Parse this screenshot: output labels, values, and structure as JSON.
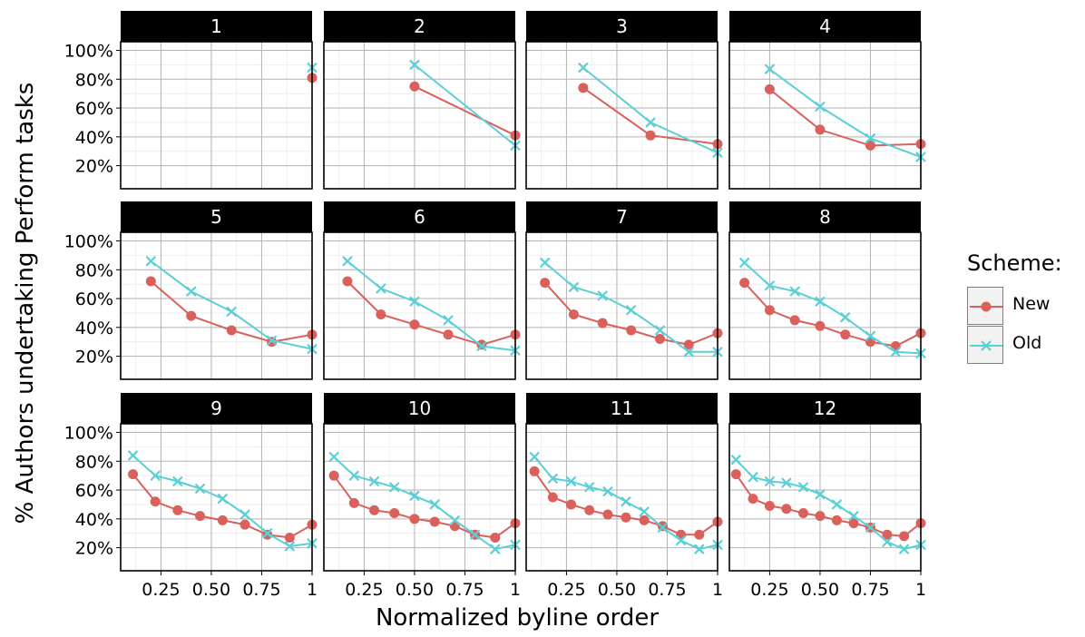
{
  "colors": {
    "new": "#d9605b",
    "old": "#5bcfd6",
    "strip": "#000000",
    "strip_text": "#ffffff"
  },
  "chart_data": {
    "type": "line",
    "xlabel": "Normalized byline order",
    "ylabel": "% Authors undertaking Perform tasks",
    "xlim": [
      0.05,
      1.0
    ],
    "ylim": [
      0.04,
      1.06
    ],
    "xticks": [
      0.25,
      0.5,
      0.75,
      1
    ],
    "xtick_labels": [
      "0.25",
      "0.50",
      "0.75",
      "1"
    ],
    "yticks": [
      0.2,
      0.4,
      0.6,
      0.8,
      1.0
    ],
    "ytick_labels": [
      "20%",
      "40%",
      "60%",
      "80%",
      "100%"
    ],
    "grid": true,
    "legend": {
      "title": "Scheme:",
      "placement": "right",
      "entries": [
        "New",
        "Old"
      ]
    },
    "facets": [
      {
        "label": "1",
        "series": [
          {
            "name": "New",
            "x": [
              1
            ],
            "y": [
              0.81
            ]
          },
          {
            "name": "Old",
            "x": [
              1
            ],
            "y": [
              0.88
            ]
          }
        ]
      },
      {
        "label": "2",
        "series": [
          {
            "name": "New",
            "x": [
              0.5,
              1
            ],
            "y": [
              0.75,
              0.41
            ]
          },
          {
            "name": "Old",
            "x": [
              0.5,
              1
            ],
            "y": [
              0.9,
              0.34
            ]
          }
        ]
      },
      {
        "label": "3",
        "series": [
          {
            "name": "New",
            "x": [
              0.333,
              0.667,
              1
            ],
            "y": [
              0.74,
              0.41,
              0.35
            ]
          },
          {
            "name": "Old",
            "x": [
              0.333,
              0.667,
              1
            ],
            "y": [
              0.88,
              0.5,
              0.29
            ]
          }
        ]
      },
      {
        "label": "4",
        "series": [
          {
            "name": "New",
            "x": [
              0.25,
              0.5,
              0.75,
              1
            ],
            "y": [
              0.73,
              0.45,
              0.34,
              0.35
            ]
          },
          {
            "name": "Old",
            "x": [
              0.25,
              0.5,
              0.75,
              1
            ],
            "y": [
              0.87,
              0.61,
              0.39,
              0.26
            ]
          }
        ]
      },
      {
        "label": "5",
        "series": [
          {
            "name": "New",
            "x": [
              0.2,
              0.4,
              0.6,
              0.8,
              1
            ],
            "y": [
              0.72,
              0.48,
              0.38,
              0.3,
              0.35
            ]
          },
          {
            "name": "Old",
            "x": [
              0.2,
              0.4,
              0.6,
              0.8,
              1
            ],
            "y": [
              0.86,
              0.65,
              0.51,
              0.31,
              0.25
            ]
          }
        ]
      },
      {
        "label": "6",
        "series": [
          {
            "name": "New",
            "x": [
              0.167,
              0.333,
              0.5,
              0.667,
              0.833,
              1
            ],
            "y": [
              0.72,
              0.49,
              0.42,
              0.35,
              0.28,
              0.35
            ]
          },
          {
            "name": "Old",
            "x": [
              0.167,
              0.333,
              0.5,
              0.667,
              0.833,
              1
            ],
            "y": [
              0.86,
              0.67,
              0.58,
              0.45,
              0.27,
              0.24
            ]
          }
        ]
      },
      {
        "label": "7",
        "series": [
          {
            "name": "New",
            "x": [
              0.143,
              0.286,
              0.429,
              0.571,
              0.714,
              0.857,
              1
            ],
            "y": [
              0.71,
              0.49,
              0.43,
              0.38,
              0.32,
              0.28,
              0.36
            ]
          },
          {
            "name": "Old",
            "x": [
              0.143,
              0.286,
              0.429,
              0.571,
              0.714,
              0.857,
              1
            ],
            "y": [
              0.85,
              0.68,
              0.62,
              0.52,
              0.38,
              0.23,
              0.23
            ]
          }
        ]
      },
      {
        "label": "8",
        "series": [
          {
            "name": "New",
            "x": [
              0.125,
              0.25,
              0.375,
              0.5,
              0.625,
              0.75,
              0.875,
              1
            ],
            "y": [
              0.71,
              0.52,
              0.45,
              0.41,
              0.35,
              0.3,
              0.27,
              0.36
            ]
          },
          {
            "name": "Old",
            "x": [
              0.125,
              0.25,
              0.375,
              0.5,
              0.625,
              0.75,
              0.875,
              1
            ],
            "y": [
              0.85,
              0.69,
              0.65,
              0.58,
              0.47,
              0.34,
              0.23,
              0.22
            ]
          }
        ]
      },
      {
        "label": "9",
        "series": [
          {
            "name": "New",
            "x": [
              0.111,
              0.222,
              0.333,
              0.444,
              0.556,
              0.667,
              0.778,
              0.889,
              1
            ],
            "y": [
              0.71,
              0.52,
              0.46,
              0.42,
              0.39,
              0.36,
              0.29,
              0.27,
              0.36
            ]
          },
          {
            "name": "Old",
            "x": [
              0.111,
              0.222,
              0.333,
              0.444,
              0.556,
              0.667,
              0.778,
              0.889,
              1
            ],
            "y": [
              0.84,
              0.7,
              0.66,
              0.61,
              0.54,
              0.43,
              0.3,
              0.21,
              0.23
            ]
          }
        ]
      },
      {
        "label": "10",
        "series": [
          {
            "name": "New",
            "x": [
              0.1,
              0.2,
              0.3,
              0.4,
              0.5,
              0.6,
              0.7,
              0.8,
              0.9,
              1
            ],
            "y": [
              0.7,
              0.51,
              0.46,
              0.44,
              0.4,
              0.38,
              0.35,
              0.29,
              0.27,
              0.37
            ]
          },
          {
            "name": "Old",
            "x": [
              0.1,
              0.2,
              0.3,
              0.4,
              0.5,
              0.6,
              0.7,
              0.8,
              0.9,
              1
            ],
            "y": [
              0.83,
              0.7,
              0.66,
              0.62,
              0.56,
              0.5,
              0.39,
              0.29,
              0.19,
              0.22
            ]
          }
        ]
      },
      {
        "label": "11",
        "series": [
          {
            "name": "New",
            "x": [
              0.091,
              0.182,
              0.273,
              0.364,
              0.455,
              0.545,
              0.636,
              0.727,
              0.818,
              0.909,
              1
            ],
            "y": [
              0.73,
              0.55,
              0.5,
              0.46,
              0.43,
              0.41,
              0.39,
              0.35,
              0.29,
              0.29,
              0.38
            ]
          },
          {
            "name": "Old",
            "x": [
              0.091,
              0.182,
              0.273,
              0.364,
              0.455,
              0.545,
              0.636,
              0.727,
              0.818,
              0.909,
              1
            ],
            "y": [
              0.83,
              0.68,
              0.66,
              0.62,
              0.59,
              0.52,
              0.45,
              0.34,
              0.25,
              0.19,
              0.22
            ]
          }
        ]
      },
      {
        "label": "12",
        "series": [
          {
            "name": "New",
            "x": [
              0.083,
              0.167,
              0.25,
              0.333,
              0.417,
              0.5,
              0.583,
              0.667,
              0.75,
              0.833,
              0.917,
              1
            ],
            "y": [
              0.71,
              0.54,
              0.49,
              0.47,
              0.44,
              0.42,
              0.39,
              0.37,
              0.34,
              0.29,
              0.28,
              0.37
            ]
          },
          {
            "name": "Old",
            "x": [
              0.083,
              0.167,
              0.25,
              0.333,
              0.417,
              0.5,
              0.583,
              0.667,
              0.75,
              0.833,
              0.917,
              1
            ],
            "y": [
              0.81,
              0.69,
              0.66,
              0.65,
              0.62,
              0.57,
              0.5,
              0.42,
              0.34,
              0.24,
              0.19,
              0.22
            ]
          }
        ]
      }
    ]
  }
}
